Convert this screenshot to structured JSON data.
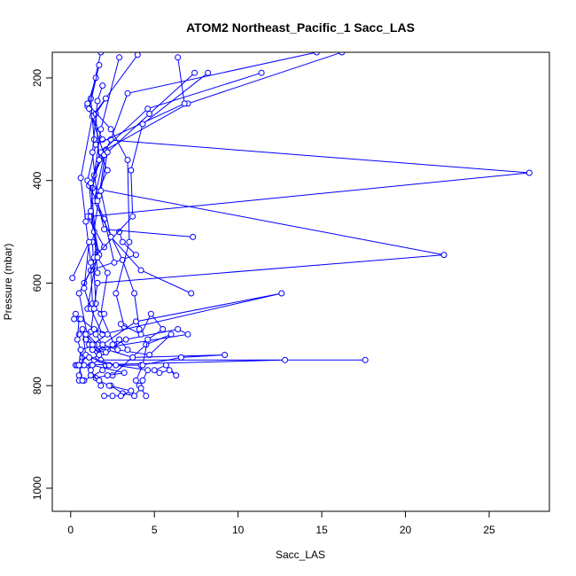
{
  "chart_data": {
    "type": "line",
    "title": "ATOM2 Northeast_Pacific_1 Sacc_LAS",
    "xlabel": "Sacc_LAS",
    "ylabel": "Pressure (mbar)",
    "xlim": [
      -1.1,
      28.6
    ],
    "ylim": [
      1045,
      150
    ],
    "y_reversed": true,
    "x_ticks": [
      0,
      5,
      10,
      15,
      20,
      25
    ],
    "y_ticks": [
      200,
      400,
      600,
      800,
      1000
    ],
    "grid": false,
    "legend": "none",
    "colors": {
      "series": "#0000ff"
    },
    "marker": "open-circle",
    "series": [
      {
        "x": [
          0.8,
          1.2,
          3.9,
          3.1,
          2.9
        ],
        "y": [
          600,
          575,
          545,
          520,
          500
        ]
      },
      {
        "x": [
          1.8,
          1.2,
          1.4,
          2.2,
          1.0,
          2.0
        ],
        "y": [
          150,
          240,
          320,
          380,
          470,
          530
        ]
      },
      {
        "x": [
          1.5,
          1.0,
          1.9,
          27.4,
          1.2,
          1.6,
          1.0
        ],
        "y": [
          200,
          255,
          320,
          385,
          470,
          540,
          650
        ]
      },
      {
        "x": [
          4.0,
          1.3,
          0.6,
          0.9,
          1.2,
          1.3
        ],
        "y": [
          155,
          275,
          395,
          480,
          560,
          640
        ]
      },
      {
        "x": [
          16.2,
          7.0,
          2.1,
          1.7,
          1.3,
          1.5
        ],
        "y": [
          150,
          250,
          340,
          430,
          520,
          640
        ]
      },
      {
        "x": [
          14.7,
          3.4,
          2.4,
          1.1,
          1.4,
          1.6
        ],
        "y": [
          150,
          230,
          320,
          410,
          500,
          580
        ]
      },
      {
        "x": [
          11.4,
          4.6,
          1.8,
          1.3,
          22.3,
          1.6,
          1.2
        ],
        "y": [
          190,
          260,
          345,
          415,
          545,
          600,
          695
        ]
      },
      {
        "x": [
          6.4,
          6.8,
          1.5,
          1.0,
          2.0,
          2.6
        ],
        "y": [
          160,
          250,
          330,
          400,
          475,
          560
        ]
      },
      {
        "x": [
          2.9,
          1.8,
          1.4,
          1.2,
          1.7,
          0.5,
          1.1
        ],
        "y": [
          160,
          300,
          390,
          460,
          545,
          620,
          720
        ]
      },
      {
        "x": [
          8.2,
          4.3,
          3.6,
          3.7,
          1.4
        ],
        "y": [
          190,
          290,
          380,
          470,
          550
        ]
      },
      {
        "x": [
          1.7,
          1.1,
          2.0,
          1.4,
          3.1,
          3.8,
          4.1
        ],
        "y": [
          175,
          260,
          350,
          440,
          555,
          620,
          690
        ]
      },
      {
        "x": [
          7.4,
          4.7,
          2.2,
          1.8,
          2.4,
          4.2,
          7.2
        ],
        "y": [
          190,
          270,
          345,
          420,
          510,
          575,
          620
        ]
      },
      {
        "x": [
          2.1,
          1.5,
          1.7,
          1.2,
          1.6,
          2.2,
          1.8,
          2.6
        ],
        "y": [
          240,
          270,
          360,
          405,
          550,
          580,
          660,
          720
        ]
      },
      {
        "x": [
          1.9,
          1.6,
          1.3,
          1.6,
          2.0,
          7.3
        ],
        "y": [
          215,
          245,
          345,
          440,
          495,
          510
        ]
      },
      {
        "x": [
          1.0,
          2.4,
          3.4,
          3.5,
          2.7,
          3.2
        ],
        "y": [
          250,
          300,
          360,
          520,
          620,
          685
        ]
      },
      {
        "x": [
          0.1,
          1.1,
          0.8,
          1.2,
          1.9,
          12.6,
          3.9,
          1.9,
          1.2
        ],
        "y": [
          590,
          520,
          610,
          650,
          700,
          620,
          675,
          720,
          760
        ]
      },
      {
        "x": [
          1.4,
          2.0,
          1.5,
          1.9,
          2.8,
          4.7,
          6.0,
          4.5,
          2.5
        ],
        "y": [
          650,
          660,
          700,
          720,
          730,
          740,
          700,
          720,
          780
        ]
      },
      {
        "x": [
          0.9,
          1.9,
          3.3,
          6.4,
          7.0,
          1.3,
          1.8,
          17.6,
          12.8,
          0.6
        ],
        "y": [
          710,
          735,
          710,
          690,
          700,
          730,
          750,
          750,
          750,
          760
        ]
      },
      {
        "x": [
          2.2,
          3.7,
          9.2,
          6.6,
          4.2,
          2.1
        ],
        "y": [
          730,
          745,
          740,
          745,
          760,
          760
        ]
      },
      {
        "x": [
          0.3,
          0.4,
          1.3,
          3.2,
          2.2,
          1.5
        ],
        "y": [
          760,
          760,
          760,
          775,
          780,
          785
        ]
      },
      {
        "x": [
          0.7,
          1.4,
          2.3,
          1.9,
          0.8,
          0.5
        ],
        "y": [
          745,
          750,
          760,
          770,
          790,
          790
        ]
      },
      {
        "x": [
          0.5,
          0.7,
          0.9,
          0.6,
          0.5
        ],
        "y": [
          700,
          690,
          740,
          760,
          780
        ]
      },
      {
        "x": [
          1.0,
          1.6,
          0.6,
          0.8,
          1.2,
          1.8
        ],
        "y": [
          700,
          720,
          730,
          760,
          770,
          800
        ]
      },
      {
        "x": [
          1.1,
          2.7,
          4.6,
          4.3,
          4.1,
          4.5
        ],
        "y": [
          745,
          760,
          770,
          790,
          800,
          820
        ]
      },
      {
        "x": [
          2.4,
          3.1,
          3.8,
          4.2
        ],
        "y": [
          800,
          815,
          820,
          805
        ]
      },
      {
        "x": [
          5.0,
          5.7,
          6.3,
          5.9,
          5.3
        ],
        "y": [
          770,
          760,
          780,
          770,
          775
        ]
      },
      {
        "x": [
          1.2,
          1.7,
          2.3,
          3.6,
          3.0,
          2.5,
          2.0
        ],
        "y": [
          780,
          790,
          800,
          810,
          820,
          820,
          820
        ]
      },
      {
        "x": [
          0.3,
          0.5,
          0.4,
          0.6,
          0.5,
          0.7
        ],
        "y": [
          660,
          670,
          710,
          730,
          760,
          790
        ]
      },
      {
        "x": [
          3.0,
          4.2,
          4.8,
          5.5,
          4.6,
          4.3,
          3.9
        ],
        "y": [
          680,
          700,
          660,
          690,
          710,
          760,
          790
        ]
      },
      {
        "x": [
          0.9,
          1.4,
          1.3,
          2.1,
          2.5,
          2.9,
          3.4
        ],
        "y": [
          700,
          720,
          730,
          735,
          720,
          710,
          730
        ]
      },
      {
        "x": [
          0.2,
          0.6,
          1.4,
          2.2,
          1.3,
          1.7
        ],
        "y": [
          670,
          670,
          690,
          700,
          720,
          740
        ]
      }
    ]
  }
}
